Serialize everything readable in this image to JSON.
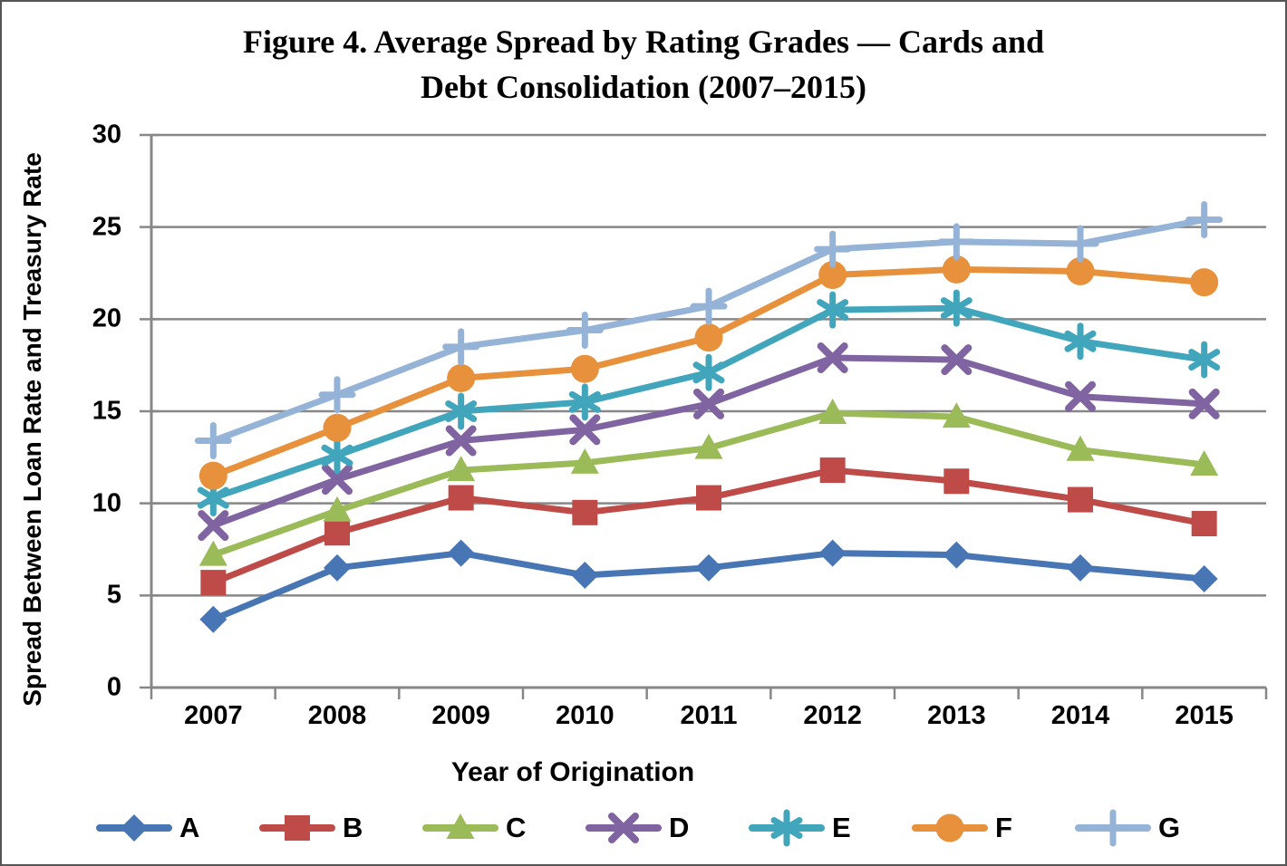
{
  "chart_data": {
    "type": "line",
    "title": "Figure 4. Average Spread by Rating Grades — Cards and Debt Consolidation (2007–2015)",
    "title_lines": [
      "Figure 4. Average Spread by Rating Grades — Cards and",
      "Debt Consolidation (2007–2015)"
    ],
    "xlabel": "Year of Origination",
    "ylabel": "Spread Between Loan Rate and Treasury Rate",
    "categories": [
      "2007",
      "2008",
      "2009",
      "2010",
      "2011",
      "2012",
      "2013",
      "2014",
      "2015"
    ],
    "yticks": [
      0,
      5,
      10,
      15,
      20,
      25,
      30
    ],
    "ylim": [
      0,
      30
    ],
    "grid": true,
    "legend_position": "bottom",
    "axis_color": "#878787",
    "gridline_color": "#878787",
    "series": [
      {
        "name": "A",
        "color": "#4876B4",
        "marker": "diamond",
        "values": [
          3.7,
          6.5,
          7.3,
          6.1,
          6.5,
          7.3,
          7.2,
          6.5,
          5.9
        ]
      },
      {
        "name": "B",
        "color": "#BE4B48",
        "marker": "square",
        "values": [
          5.7,
          8.4,
          10.3,
          9.5,
          10.3,
          11.8,
          11.2,
          10.2,
          8.9
        ]
      },
      {
        "name": "C",
        "color": "#9BBB59",
        "marker": "triangle",
        "values": [
          7.2,
          9.6,
          11.8,
          12.2,
          13.0,
          14.9,
          14.7,
          12.9,
          12.1
        ]
      },
      {
        "name": "D",
        "color": "#8064A2",
        "marker": "x",
        "values": [
          8.8,
          11.3,
          13.4,
          14.0,
          15.4,
          17.9,
          17.8,
          15.8,
          15.4
        ]
      },
      {
        "name": "E",
        "color": "#41A5BC",
        "marker": "asterisk",
        "values": [
          10.3,
          12.6,
          15.0,
          15.5,
          17.1,
          20.5,
          20.6,
          18.8,
          17.8
        ]
      },
      {
        "name": "F",
        "color": "#E8913C",
        "marker": "circle",
        "values": [
          11.5,
          14.1,
          16.8,
          17.3,
          19.0,
          22.4,
          22.7,
          22.6,
          22.0
        ]
      },
      {
        "name": "G",
        "color": "#95B3D7",
        "marker": "plus",
        "values": [
          13.4,
          15.9,
          18.5,
          19.4,
          20.7,
          23.8,
          24.2,
          24.1,
          25.4
        ]
      }
    ]
  }
}
